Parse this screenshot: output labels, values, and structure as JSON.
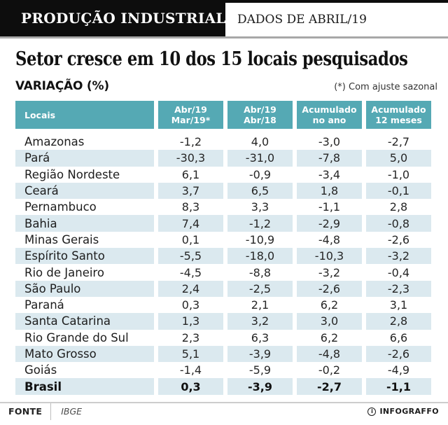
{
  "topbar": {
    "brand": "PRODUÇÃO INDUSTRIAL",
    "dados": "DADOS DE ABRIL/19"
  },
  "headline": "Setor cresce em 10 dos 15 locais pesquisados",
  "section": {
    "label": "VARIAÇÃO (%)",
    "footnote": "(*) Com ajuste sazonal"
  },
  "table": {
    "columns": [
      {
        "line1": "Locais",
        "line2": ""
      },
      {
        "line1": "Abr/19",
        "line2": "Mar/19*"
      },
      {
        "line1": "Abr/19",
        "line2": "Abr/18"
      },
      {
        "line1": "Acumulado",
        "line2": "no ano"
      },
      {
        "line1": "Acumulado",
        "line2": "12 meses"
      }
    ],
    "rows": [
      {
        "local": "Amazonas",
        "values": [
          "-1,2",
          "4,0",
          "-3,0",
          "-2,7"
        ],
        "bold": false
      },
      {
        "local": "Pará",
        "values": [
          "-30,3",
          "-31,0",
          "-7,8",
          "5,0"
        ],
        "bold": false
      },
      {
        "local": "Região Nordeste",
        "values": [
          "6,1",
          "-0,9",
          "-3,4",
          "-1,0"
        ],
        "bold": false
      },
      {
        "local": "Ceará",
        "values": [
          "3,7",
          "6,5",
          "1,8",
          "-0,1"
        ],
        "bold": false
      },
      {
        "local": "Pernambuco",
        "values": [
          "8,3",
          "3,3",
          "-1,1",
          "2,8"
        ],
        "bold": false
      },
      {
        "local": "Bahia",
        "values": [
          "7,4",
          "-1,2",
          "-2,9",
          "-0,8"
        ],
        "bold": false
      },
      {
        "local": "Minas Gerais",
        "values": [
          "0,1",
          "-10,9",
          "-4,8",
          "-2,6"
        ],
        "bold": false
      },
      {
        "local": "Espírito Santo",
        "values": [
          "-5,5",
          "-18,0",
          "-10,3",
          "-3,2"
        ],
        "bold": false
      },
      {
        "local": "Rio de Janeiro",
        "values": [
          "-4,5",
          "-8,8",
          "-3,2",
          "-0,4"
        ],
        "bold": false
      },
      {
        "local": "São Paulo",
        "values": [
          "2,4",
          "-2,5",
          "-2,6",
          "-2,3"
        ],
        "bold": false
      },
      {
        "local": "Paraná",
        "values": [
          "0,3",
          "2,1",
          "6,2",
          "3,1"
        ],
        "bold": false
      },
      {
        "local": "Santa Catarina",
        "values": [
          "1,3",
          "3,2",
          "3,0",
          "2,8"
        ],
        "bold": false
      },
      {
        "local": "Rio Grande do Sul",
        "values": [
          "2,3",
          "6,3",
          "6,2",
          "6,6"
        ],
        "bold": false
      },
      {
        "local": "Mato Grosso",
        "values": [
          "5,1",
          "-3,9",
          "-4,8",
          "-2,6"
        ],
        "bold": false
      },
      {
        "local": "Goiás",
        "values": [
          "-1,4",
          "-5,9",
          "-0,2",
          "-4,9"
        ],
        "bold": false
      },
      {
        "local": "Brasil",
        "values": [
          "0,3",
          "-3,9",
          "-2,7",
          "-1,1"
        ],
        "bold": true
      }
    ]
  },
  "footer": {
    "source_label": "FONTE",
    "source": "IBGE",
    "credit": "INFOGRAFFO",
    "credit_icon_glyph": "i"
  },
  "colors": {
    "header_teal": "#55a9b4",
    "row_stripe": "#dbe9ef",
    "topbar_black": "#0d0d0d",
    "topbar_underline_gray": "#a8a8a8"
  },
  "chart_data": {
    "type": "table",
    "title": "Setor cresce em 10 dos 15 locais pesquisados",
    "subtitle": "VARIAÇÃO (%)",
    "footnote": "(*) Com ajuste sazonal",
    "source": "IBGE",
    "period": "DADOS DE ABRIL/19",
    "columns": [
      "Locais",
      "Abr/19 Mar/19*",
      "Abr/19 Abr/18",
      "Acumulado no ano",
      "Acumulado 12 meses"
    ],
    "rows": [
      [
        "Amazonas",
        -1.2,
        4.0,
        -3.0,
        -2.7
      ],
      [
        "Pará",
        -30.3,
        -31.0,
        -7.8,
        5.0
      ],
      [
        "Região Nordeste",
        6.1,
        -0.9,
        -3.4,
        -1.0
      ],
      [
        "Ceará",
        3.7,
        6.5,
        1.8,
        -0.1
      ],
      [
        "Pernambuco",
        8.3,
        3.3,
        -1.1,
        2.8
      ],
      [
        "Bahia",
        7.4,
        -1.2,
        -2.9,
        -0.8
      ],
      [
        "Minas Gerais",
        0.1,
        -10.9,
        -4.8,
        -2.6
      ],
      [
        "Espírito Santo",
        -5.5,
        -18.0,
        -10.3,
        -3.2
      ],
      [
        "Rio de Janeiro",
        -4.5,
        -8.8,
        -3.2,
        -0.4
      ],
      [
        "São Paulo",
        2.4,
        -2.5,
        -2.6,
        -2.3
      ],
      [
        "Paraná",
        0.3,
        2.1,
        6.2,
        3.1
      ],
      [
        "Santa Catarina",
        1.3,
        3.2,
        3.0,
        2.8
      ],
      [
        "Rio Grande do Sul",
        2.3,
        6.3,
        6.2,
        6.6
      ],
      [
        "Mato Grosso",
        5.1,
        -3.9,
        -4.8,
        -2.6
      ],
      [
        "Goiás",
        -1.4,
        -5.9,
        -0.2,
        -4.9
      ],
      [
        "Brasil",
        0.3,
        -3.9,
        -2.7,
        -1.1
      ]
    ]
  }
}
